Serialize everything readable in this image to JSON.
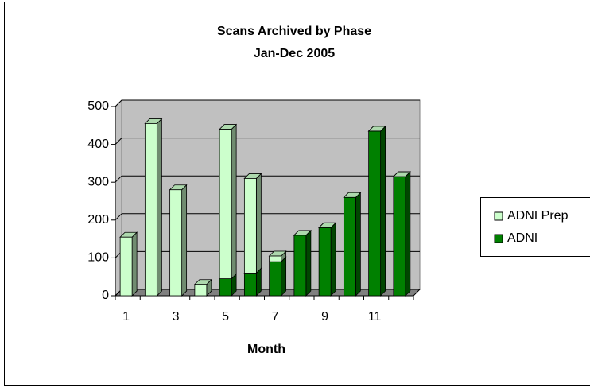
{
  "chart_data": {
    "type": "bar",
    "stacked": true,
    "title": "Scans Archived by Phase",
    "subtitle": "Jan-Dec 2005",
    "x_label": "Month",
    "categories": [
      1,
      null,
      3,
      null,
      5,
      null,
      7,
      null,
      9,
      null,
      11,
      null
    ],
    "series": [
      {
        "name": "ADNI Prep",
        "color": "#ccffcc",
        "values": [
          155,
          455,
          280,
          30,
          395,
          250,
          15,
          0,
          0,
          0,
          0,
          0
        ]
      },
      {
        "name": "ADNI",
        "color": "#008000",
        "values": [
          0,
          0,
          0,
          0,
          45,
          60,
          90,
          160,
          180,
          260,
          435,
          315
        ]
      }
    ],
    "ylim": [
      0,
      500
    ],
    "yticks": [
      0,
      100,
      200,
      300,
      400,
      500
    ],
    "grid": true,
    "legend": "right"
  }
}
